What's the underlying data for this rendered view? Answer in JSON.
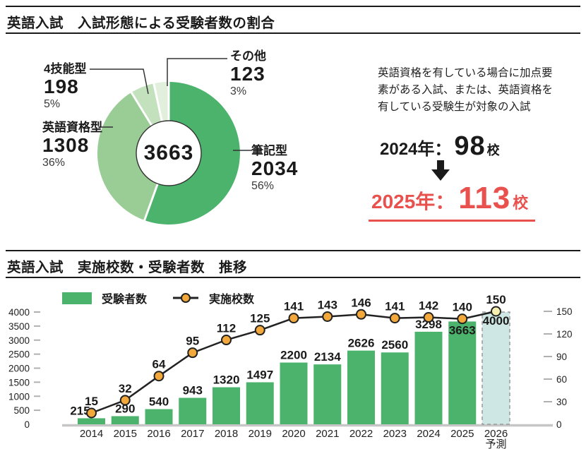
{
  "section1": {
    "title": "英語入試　入試形態による受験者数の割合"
  },
  "section2": {
    "title": "英語入試　実施校数・受験者数　推移"
  },
  "highlight": {
    "note_lines": [
      "英語資格を有している場合に加点要",
      "素がある入試、または、英語資格を",
      "有している受験生が対象の入試"
    ],
    "from": {
      "label": "2024年：",
      "value": "98",
      "unit": "校"
    },
    "to": {
      "label": "2025年：",
      "value": "113",
      "unit": "校"
    },
    "accent_color": "#e8514d"
  },
  "chart_data": [
    {
      "type": "pie",
      "variant": "donut",
      "title": "入試形態による受験者数の割合",
      "center_total": "3663",
      "direction": "clockwise",
      "start_angle_deg": 0,
      "segments": [
        {
          "label": "筆記型",
          "value": 2034,
          "pct": "56%",
          "color": "#4cb36c"
        },
        {
          "label": "英語資格型",
          "value": 1308,
          "pct": "36%",
          "color": "#9acd95"
        },
        {
          "label": "4技能型",
          "value": 198,
          "pct": "5%",
          "color": "#c3e1bd"
        },
        {
          "label": "その他",
          "value": 123,
          "pct": "3%",
          "color": "#e1efdc"
        }
      ]
    },
    {
      "type": "bar+line",
      "title": "英語入試　実施校数・受験者数　推移",
      "categories": [
        "2014",
        "2015",
        "2016",
        "2017",
        "2018",
        "2019",
        "2020",
        "2021",
        "2022",
        "2023",
        "2024",
        "2025",
        "2026"
      ],
      "forecast_index": 12,
      "forecast_sublabel": "予測",
      "series": [
        {
          "name": "受験者数",
          "type": "bar",
          "color": "#4cb36c",
          "forecast_fill": "#cfe7e4",
          "forecast_stroke": "#9a9a9a",
          "values": [
            215,
            290,
            540,
            943,
            1320,
            1497,
            2200,
            2134,
            2626,
            2560,
            3298,
            3663,
            4000
          ]
        },
        {
          "name": "実施校数",
          "type": "line",
          "color": "#222222",
          "marker_fill": "#f2a83b",
          "forecast_marker_fill": "#f6f0b0",
          "values": [
            15,
            32,
            64,
            95,
            112,
            125,
            141,
            143,
            146,
            141,
            142,
            140,
            150
          ]
        }
      ],
      "left_axis": {
        "ticks": [
          0,
          500,
          1000,
          1500,
          2000,
          2500,
          3000,
          3500,
          4000
        ],
        "max": 4000
      },
      "right_axis": {
        "ticks": [
          0,
          30,
          60,
          90,
          120,
          150
        ],
        "max": 150
      },
      "layout_hints": {
        "bar_label_inside": [
          false,
          false,
          false,
          false,
          false,
          false,
          false,
          false,
          false,
          false,
          false,
          true,
          true
        ],
        "bar_label_dx": [
          -16,
          0,
          0,
          0,
          0,
          0,
          0,
          0,
          0,
          0,
          0,
          0,
          0
        ]
      }
    }
  ]
}
